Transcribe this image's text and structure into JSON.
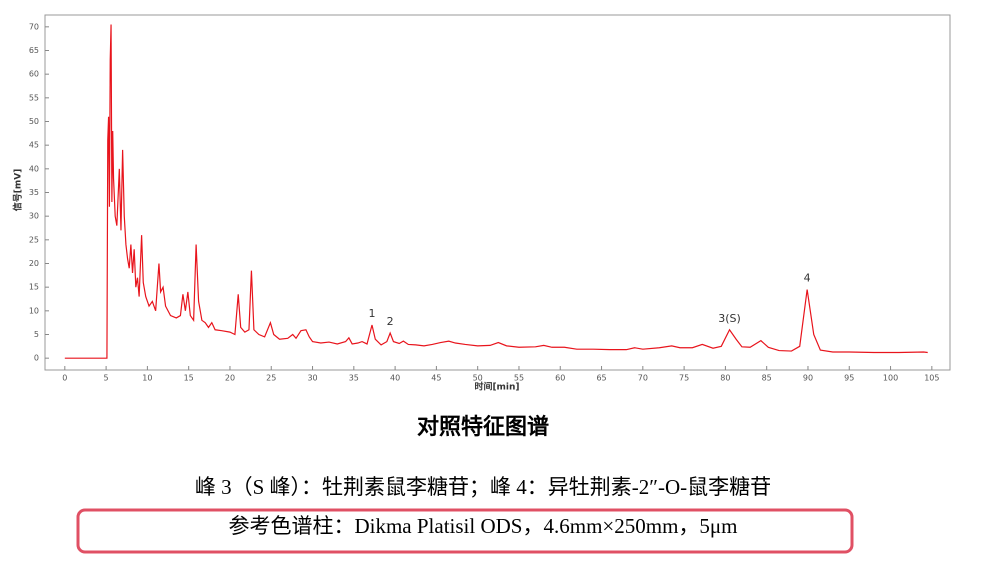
{
  "chart_data": {
    "type": "line",
    "x_label": "时间[min]",
    "y_label": "信号[mV]",
    "color": "#e8141c",
    "x": [
      0,
      5.1,
      5.2,
      5.3,
      5.4,
      5.5,
      5.6,
      5.7,
      5.8,
      5.9,
      6.1,
      6.3,
      6.6,
      6.8,
      7.0,
      7.2,
      7.4,
      7.6,
      7.8,
      8.0,
      8.2,
      8.4,
      8.6,
      8.8,
      9.0,
      9.3,
      9.5,
      9.8,
      10.2,
      10.6,
      11.0,
      11.4,
      11.6,
      11.9,
      12.2,
      12.8,
      13.5,
      14.0,
      14.3,
      14.6,
      14.9,
      15.2,
      15.6,
      15.9,
      16.2,
      16.6,
      17.0,
      17.4,
      17.8,
      18.2,
      19,
      20,
      20.6,
      21,
      21.3,
      21.8,
      22.3,
      22.6,
      22.9,
      23.5,
      24.2,
      24.9,
      25.3,
      26,
      27,
      27.6,
      28,
      28.6,
      29.2,
      29.6,
      30,
      31,
      32,
      33,
      34,
      34.4,
      34.8,
      35.5,
      36,
      36.6,
      37.2,
      37.6,
      38.3,
      39.0,
      39.4,
      39.8,
      40.5,
      41,
      41.6,
      42.5,
      43.5,
      44.5,
      45.5,
      46.5,
      47.3,
      48.5,
      50,
      51.5,
      52.5,
      53.5,
      55,
      57,
      58,
      59,
      60.5,
      62,
      64,
      66,
      68,
      69,
      70,
      72,
      73.5,
      74.5,
      76,
      77.2,
      78.5,
      79.5,
      80.5,
      81.3,
      82,
      83,
      84.3,
      85.2,
      86.5,
      88,
      89,
      89.9,
      90.7,
      91.5,
      93,
      95,
      98,
      101,
      104,
      104.5
    ],
    "values": [
      0,
      0,
      46,
      51,
      32,
      63,
      70.5,
      33,
      48,
      38,
      30,
      28,
      40,
      27,
      44,
      30,
      24,
      21,
      19,
      24,
      18,
      23,
      15,
      17,
      13,
      26,
      16,
      13,
      11,
      12,
      10,
      20,
      14,
      15,
      11,
      9,
      8.5,
      9,
      13.5,
      10,
      14,
      9,
      8,
      24,
      12,
      8,
      7.5,
      6.5,
      7.5,
      6,
      5.8,
      5.5,
      5,
      13.5,
      6.5,
      5.5,
      6,
      18.5,
      6,
      5,
      4.5,
      7.5,
      5,
      4,
      4.2,
      5,
      4.2,
      5.8,
      6,
      4.5,
      3.5,
      3.2,
      3.4,
      3,
      3.5,
      4.3,
      3,
      3.2,
      3.5,
      3,
      7,
      4,
      2.8,
      3.5,
      5.3,
      3.5,
      3.1,
      3.6,
      2.9,
      2.8,
      2.6,
      2.9,
      3.3,
      3.6,
      3.2,
      2.9,
      2.6,
      2.7,
      3.3,
      2.6,
      2.3,
      2.4,
      2.7,
      2.3,
      2.3,
      1.9,
      1.9,
      1.8,
      1.8,
      2.2,
      1.9,
      2.2,
      2.6,
      2.2,
      2.2,
      2.9,
      2.1,
      2.5,
      6,
      4,
      2.4,
      2.3,
      3.7,
      2.3,
      1.6,
      1.5,
      2.5,
      14.5,
      5,
      1.7,
      1.3,
      1.3,
      1.2,
      1.2,
      1.3,
      1.2
    ],
    "annotations": [
      {
        "label": "1",
        "x": 37.2
      },
      {
        "label": "2",
        "x": 39.4
      },
      {
        "label": "3(S)",
        "x": 80.5
      },
      {
        "label": "4",
        "x": 89.9
      }
    ],
    "xlim": [
      -2.4,
      107.2
    ],
    "ylim": [
      -2.5,
      72.5
    ],
    "xticks": [
      0,
      5,
      10,
      15,
      20,
      25,
      30,
      35,
      40,
      45,
      50,
      55,
      60,
      65,
      70,
      75,
      80,
      85,
      90,
      95,
      100,
      105
    ],
    "yticks": [
      0,
      5,
      10,
      15,
      20,
      25,
      30,
      35,
      40,
      45,
      50,
      55,
      60,
      65,
      70
    ]
  },
  "caption": "对照特征图谱",
  "notes": [
    "峰 3（S 峰）：牡荆素鼠李糖苷；峰 4：异牡荆素-2″-O-鼠李糖苷",
    "参考色谱柱：Dikma Platisil ODS，4.6mm×250mm，5μm"
  ]
}
